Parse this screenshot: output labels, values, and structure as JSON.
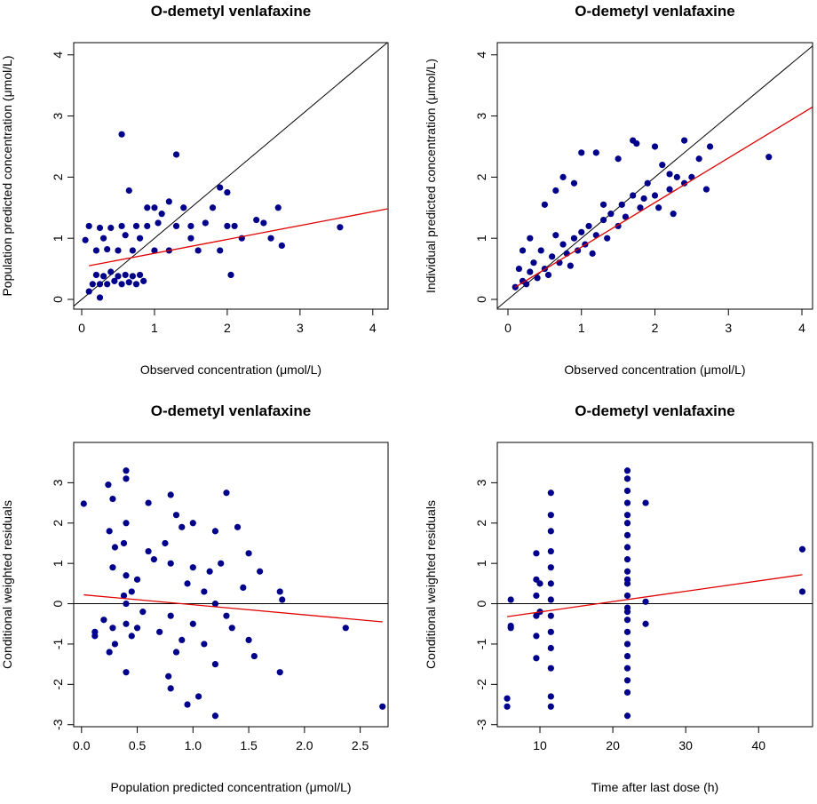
{
  "chart_data": [
    {
      "type": "scatter",
      "title": "O-demetyl venlafaxine",
      "xlabel": "Observed concentration (μmol/L)",
      "ylabel": "Population predicted concentration (μmol/L)",
      "color": "#00008b",
      "xlim": [
        -0.11,
        4.21
      ],
      "ylim": [
        -0.16,
        4.2
      ],
      "xticks": [
        0,
        1,
        2,
        3,
        4
      ],
      "yticks": [
        0,
        1,
        2,
        3,
        4
      ],
      "abline": {
        "intercept": 0,
        "slope": 1,
        "color": "#000000"
      },
      "trend": {
        "x": [
          0.1,
          4.2
        ],
        "y": [
          0.55,
          1.48
        ],
        "color": "#e00000"
      },
      "x": [
        0.05,
        0.1,
        0.15,
        0.2,
        0.25,
        0.3,
        0.35,
        0.4,
        0.45,
        0.5,
        0.55,
        0.6,
        0.65,
        0.7,
        0.75,
        0.8,
        0.25,
        0.2,
        0.3,
        0.35,
        0.4,
        0.5,
        0.55,
        0.6,
        0.7,
        0.75,
        0.8,
        0.9,
        1.0,
        1.05,
        1.1,
        1.2,
        1.3,
        1.4,
        1.5,
        1.6,
        1.7,
        1.8,
        1.9,
        2.0,
        2.05,
        2.1,
        2.2,
        2.4,
        2.5,
        2.6,
        2.7,
        2.75,
        3.55,
        0.55,
        1.3,
        0.65,
        1.9,
        2.0,
        1.2,
        0.9,
        1.0,
        1.5,
        0.85,
        0.1,
        0.25
      ],
      "y": [
        0.97,
        0.13,
        0.25,
        0.4,
        0.25,
        0.38,
        0.25,
        0.45,
        0.3,
        0.38,
        0.25,
        0.4,
        0.28,
        0.38,
        0.25,
        0.4,
        0.03,
        0.8,
        1.0,
        0.82,
        1.17,
        0.8,
        1.2,
        1.05,
        0.8,
        1.2,
        1.0,
        1.2,
        0.8,
        1.25,
        1.4,
        0.8,
        1.2,
        1.5,
        1.2,
        0.8,
        1.25,
        1.5,
        0.8,
        1.2,
        0.4,
        1.2,
        1.0,
        1.3,
        1.25,
        1.0,
        1.5,
        0.88,
        1.18,
        2.7,
        2.37,
        1.78,
        1.83,
        1.75,
        1.6,
        1.5,
        1.5,
        1.0,
        0.3,
        1.2,
        1.17
      ]
    },
    {
      "type": "scatter",
      "title": "O-demetyl venlafaxine",
      "xlabel": "Observed concentration (μmol/L)",
      "ylabel": "Individual predicted concentration (μmol/L)",
      "color": "#00008b",
      "xlim": [
        -0.145,
        4.145
      ],
      "ylim": [
        -0.16,
        4.2
      ],
      "xticks": [
        0,
        1,
        2,
        3,
        4
      ],
      "yticks": [
        0,
        1,
        2,
        3,
        4
      ],
      "abline": {
        "intercept": 0,
        "slope": 1,
        "color": "#000000"
      },
      "trend": {
        "x": [
          0.1,
          4.15
        ],
        "y": [
          0.2,
          3.15
        ],
        "color": "#e00000"
      },
      "x": [
        0.1,
        0.15,
        0.2,
        0.25,
        0.3,
        0.35,
        0.4,
        0.45,
        0.5,
        0.55,
        0.6,
        0.65,
        0.7,
        0.75,
        0.8,
        0.85,
        0.9,
        0.95,
        1.0,
        1.05,
        1.1,
        1.15,
        1.2,
        1.3,
        1.35,
        1.4,
        1.5,
        1.55,
        1.6,
        1.7,
        1.8,
        1.85,
        1.9,
        2.0,
        2.05,
        2.1,
        2.2,
        2.25,
        2.3,
        2.4,
        2.5,
        2.6,
        2.7,
        2.75,
        3.55,
        1.7,
        1.75,
        2.0,
        2.4,
        1.0,
        1.2,
        0.65,
        1.5,
        0.75,
        0.9,
        0.5,
        0.3,
        0.2,
        1.3,
        2.2
      ],
      "y": [
        0.2,
        0.5,
        0.3,
        0.25,
        0.45,
        0.6,
        0.35,
        0.8,
        0.5,
        0.4,
        0.7,
        1.05,
        0.6,
        0.9,
        0.75,
        0.55,
        1.0,
        0.8,
        1.1,
        0.9,
        1.2,
        0.75,
        1.05,
        1.3,
        1.0,
        1.4,
        1.2,
        1.55,
        1.35,
        1.7,
        1.5,
        1.65,
        1.9,
        1.7,
        1.5,
        2.2,
        1.8,
        1.4,
        2.0,
        1.9,
        2.0,
        2.3,
        1.8,
        2.5,
        2.33,
        2.6,
        2.55,
        2.5,
        2.6,
        2.4,
        2.4,
        1.78,
        2.3,
        2.0,
        1.9,
        1.55,
        1.0,
        0.8,
        1.55,
        2.05
      ]
    },
    {
      "type": "scatter",
      "title": "O-demetyl venlafaxine",
      "xlabel": "Population predicted concentration (μmol/L)",
      "ylabel": "Conditional weighted residuals",
      "color": "#00008b",
      "xlim": [
        -0.07,
        2.75
      ],
      "ylim": [
        -3.05,
        4.0
      ],
      "xticks": [
        {
          "value": 0,
          "label": "0.0"
        },
        {
          "value": 0.5,
          "label": "0.5"
        },
        {
          "value": 1,
          "label": "1.0"
        },
        {
          "value": 1.5,
          "label": "1.5"
        },
        {
          "value": 2,
          "label": "2.0"
        },
        {
          "value": 2.5,
          "label": "2.5"
        }
      ],
      "yticks": [
        -3,
        -2,
        -1,
        0,
        1,
        2,
        3
      ],
      "hline": {
        "y": 0,
        "color": "#000000"
      },
      "trend": {
        "x": [
          0.02,
          2.7
        ],
        "y": [
          0.22,
          -0.45
        ],
        "color": "#e00000"
      },
      "x": [
        0.02,
        0.12,
        0.12,
        0.2,
        0.24,
        0.25,
        0.25,
        0.28,
        0.28,
        0.28,
        0.3,
        0.3,
        0.38,
        0.38,
        0.4,
        0.4,
        0.4,
        0.4,
        0.4,
        0.4,
        0.45,
        0.45,
        0.5,
        0.5,
        0.6,
        0.6,
        0.65,
        0.75,
        0.78,
        0.8,
        0.8,
        0.8,
        0.8,
        0.85,
        0.85,
        0.9,
        0.9,
        0.95,
        0.95,
        1.0,
        1.0,
        1.05,
        1.1,
        1.1,
        1.15,
        1.2,
        1.2,
        1.2,
        1.2,
        1.25,
        1.3,
        1.3,
        1.35,
        1.4,
        1.45,
        1.5,
        1.5,
        1.55,
        1.6,
        1.78,
        1.78,
        1.8,
        2.37,
        2.7,
        0.55,
        0.7,
        1.0,
        0.4
      ],
      "y": [
        2.48,
        -0.8,
        -0.7,
        -0.4,
        2.95,
        -1.2,
        1.8,
        2.6,
        0.9,
        -0.6,
        1.4,
        -1.0,
        1.5,
        0.2,
        3.3,
        3.1,
        2.0,
        -1.7,
        0.7,
        -0.5,
        0.3,
        -0.8,
        0.6,
        -0.6,
        1.3,
        2.5,
        1.1,
        1.5,
        -1.8,
        2.7,
        1.0,
        -0.3,
        -2.1,
        2.2,
        -1.2,
        1.9,
        -0.9,
        0.5,
        -2.5,
        2.0,
        -0.5,
        -2.3,
        -1.0,
        0.3,
        0.8,
        1.8,
        -2.78,
        0.0,
        -1.5,
        1.0,
        2.75,
        -0.3,
        -0.6,
        1.9,
        0.4,
        1.25,
        -0.9,
        -1.3,
        0.8,
        0.3,
        -1.7,
        0.1,
        -0.6,
        -2.55,
        -0.2,
        -0.7,
        0.9,
        0.0
      ]
    },
    {
      "type": "scatter",
      "title": "O-demetyl venlafaxine",
      "xlabel": "Time after last dose (h)",
      "ylabel": "Conditional weighted residuals",
      "color": "#00008b",
      "xlim": [
        4.15,
        47.4
      ],
      "ylim": [
        -3.05,
        4.0
      ],
      "xticks": [
        10,
        20,
        30,
        40
      ],
      "yticks": [
        -3,
        -2,
        -1,
        0,
        1,
        2,
        3
      ],
      "hline": {
        "y": 0,
        "color": "#000000"
      },
      "trend": {
        "x": [
          5.5,
          46
        ],
        "y": [
          -0.32,
          0.72
        ],
        "color": "#e00000"
      },
      "x": [
        5.5,
        5.5,
        6,
        6,
        6,
        9.5,
        9.5,
        9.5,
        9.5,
        9.5,
        9.5,
        10,
        10,
        11.5,
        11.5,
        11.5,
        11.5,
        11.5,
        11.5,
        11.5,
        11.5,
        11.5,
        11.5,
        11.5,
        11.5,
        11.5,
        22,
        22,
        22,
        22,
        22,
        22,
        22,
        22,
        22,
        22,
        22,
        22,
        22,
        22,
        22,
        22,
        22,
        22,
        22,
        22,
        22,
        22,
        22,
        24.5,
        24.5,
        24.5,
        46,
        46
      ],
      "y": [
        -2.35,
        -2.55,
        0.1,
        -0.55,
        -0.6,
        1.25,
        0.6,
        0.2,
        -0.3,
        -0.8,
        -1.35,
        0.5,
        -0.2,
        2.75,
        2.2,
        1.8,
        1.3,
        0.9,
        0.5,
        0.1,
        -0.3,
        -0.7,
        -1.1,
        -1.6,
        -2.3,
        -2.55,
        3.3,
        3.1,
        2.8,
        2.5,
        2.2,
        2.0,
        1.7,
        1.4,
        1.1,
        0.8,
        0.5,
        0.2,
        -0.1,
        -0.4,
        -0.7,
        -1.0,
        -1.3,
        -1.6,
        -1.9,
        -2.2,
        -2.78,
        -0.2,
        0.6,
        2.5,
        0.05,
        -0.5,
        1.35,
        0.3
      ]
    }
  ]
}
